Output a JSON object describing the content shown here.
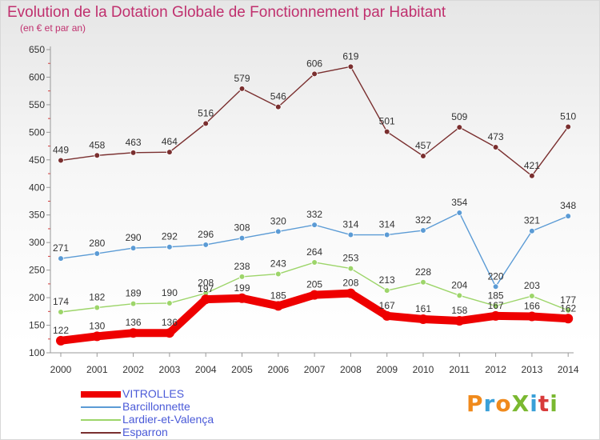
{
  "title": "Evolution de la Dotation Globale de Fonctionnement par Habitant",
  "subtitle": "(en € et par an)",
  "logo_text": "ProXiti",
  "logo_colors": [
    "#f08a1c",
    "#3aa0d8",
    "#f08a1c",
    "#7ab830",
    "#3aa0d8",
    "#d83a3a",
    "#7ab830"
  ],
  "chart_data": {
    "type": "line",
    "x": [
      "2000",
      "2001",
      "2002",
      "2003",
      "2004",
      "2005",
      "2006",
      "2007",
      "2008",
      "2009",
      "2010",
      "2011",
      "2012",
      "2013",
      "2014"
    ],
    "ylim": [
      100,
      650
    ],
    "yticks": [
      100,
      150,
      200,
      250,
      300,
      350,
      400,
      450,
      500,
      550,
      600,
      650
    ],
    "grid": false,
    "legend_position": "bottom-left",
    "series": [
      {
        "name": "VITROLLES",
        "color": "#ee0000",
        "emphasis": true,
        "values": [
          122,
          130,
          136,
          136,
          197,
          199,
          185,
          205,
          208,
          167,
          161,
          158,
          167,
          166,
          162
        ]
      },
      {
        "name": "Barcillonnette",
        "color": "#5b9bd5",
        "emphasis": false,
        "values": [
          271,
          280,
          290,
          292,
          296,
          308,
          320,
          332,
          314,
          314,
          322,
          354,
          220,
          321,
          348
        ]
      },
      {
        "name": "Lardier-et-Valença",
        "color": "#9dd56a",
        "emphasis": false,
        "values": [
          174,
          182,
          189,
          190,
          208,
          238,
          243,
          264,
          253,
          213,
          228,
          204,
          185,
          203,
          177
        ]
      },
      {
        "name": "Esparron",
        "color": "#7a2f2f",
        "emphasis": false,
        "values": [
          449,
          458,
          463,
          464,
          516,
          579,
          546,
          606,
          619,
          501,
          457,
          509,
          473,
          421,
          510
        ]
      }
    ]
  }
}
